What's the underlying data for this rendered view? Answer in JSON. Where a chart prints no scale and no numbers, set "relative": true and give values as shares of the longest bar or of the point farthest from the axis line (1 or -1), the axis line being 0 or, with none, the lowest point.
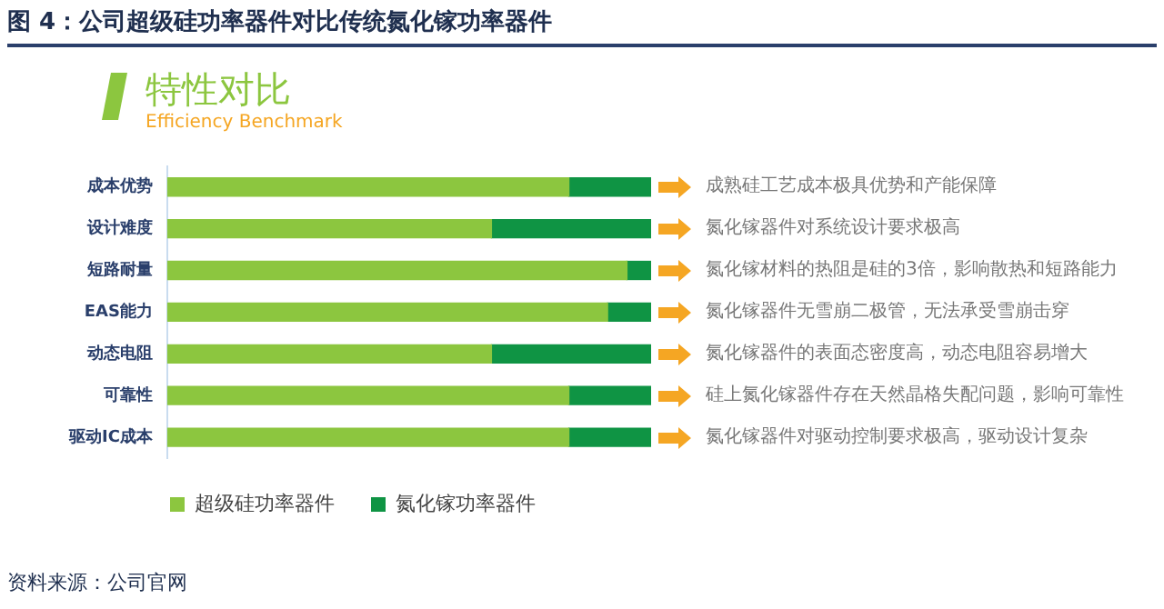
{
  "chart_data": {
    "type": "bar",
    "orientation": "horizontal",
    "stacked": true,
    "relative": true,
    "title": "图 4：公司超级硅功率器件对比传统氮化镓功率器件",
    "subtitle": "特性对比",
    "categories": [
      "成本优势",
      "设计难度",
      "短路耐量",
      "EAS能力",
      "动态电阻",
      "可靠性",
      "驱动IC成本"
    ],
    "series": [
      {
        "name": "超级硅功率器件",
        "color": "#8cc63f",
        "values": [
          0.83,
          0.67,
          0.95,
          0.91,
          0.67,
          0.83,
          0.83
        ]
      },
      {
        "name": "氮化镓功率器件",
        "color": "#0f9444",
        "values": [
          0.17,
          0.33,
          0.05,
          0.09,
          0.33,
          0.17,
          0.17
        ]
      }
    ],
    "legend": "bottom",
    "grid": false,
    "annotations": [
      "Efficiency Benchmark",
      "资料来源：公司官网",
      "成熟硅工艺成本极具优势和产能保障",
      "氮化镓器件对系统设计要求极高",
      "氮化镓材料的热阻是硅的3倍，影响散热和短路能力",
      "氮化镓器件无雪崩二极管，无法承受雪崩击穿",
      "氮化镓器件的表面态密度高，动态电阻容易增大",
      "硅上氮化镓器件存在天然晶格失配问题，影响可靠性",
      "氮化镓器件对驱动控制要求极高，驱动设计复杂"
    ]
  }
}
